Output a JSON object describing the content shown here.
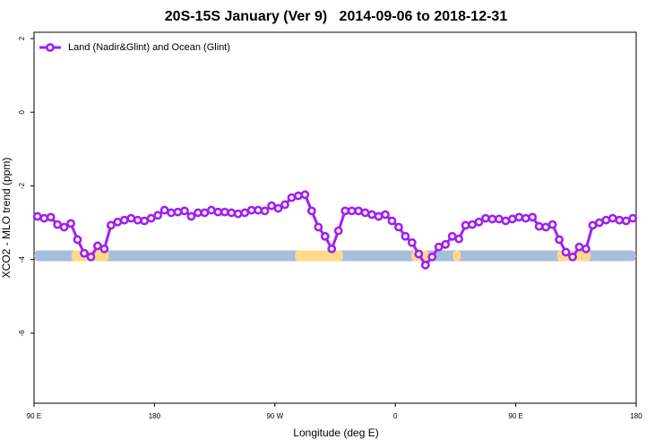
{
  "chart_data": {
    "type": "line",
    "title": "20S-15S January (Ver 9)   2014-09-06 to 2018-12-31",
    "x_label": "Longitude (deg E)",
    "y_label": "XCO2 - MLO trend (ppm)",
    "xlim": [
      90,
      540
    ],
    "xticks": [
      {
        "value": 90,
        "label": "90 E"
      },
      180,
      {
        "value": 270,
        "label": "90 W"
      },
      {
        "value": 360,
        "label": "0"
      },
      {
        "value": 450,
        "label": "90 E"
      },
      {
        "value": 540,
        "label": "180"
      }
    ],
    "ylim": [
      -7.9,
      2.17
    ],
    "yticks": [
      2,
      0,
      -2,
      -4,
      -6
    ],
    "legend": "top-left",
    "series": [
      {
        "name": "Land (Nadir&Glint) and Ocean (Glint)",
        "color": "#a020f0",
        "x": [
          92.5,
          97.5,
          102.5,
          107.5,
          112.5,
          117.5,
          122.5,
          127.5,
          132.5,
          137.5,
          142.5,
          147.5,
          152.5,
          157.5,
          162.5,
          167.5,
          172.5,
          177.5,
          182.5,
          187.5,
          192.5,
          197.5,
          202.5,
          207.5,
          212.5,
          217.5,
          222.5,
          227.5,
          232.5,
          237.5,
          242.5,
          247.5,
          252.5,
          257.5,
          262.5,
          267.5,
          272.5,
          277.5,
          282.5,
          287.5,
          292.5,
          297.5,
          302.5,
          307.5,
          312.5,
          317.5,
          322.5,
          327.5,
          332.5,
          337.5,
          342.5,
          347.5,
          352.5,
          357.5,
          362.5,
          367.5,
          372.5,
          377.5,
          382.5,
          387.5,
          392.5,
          397.5,
          402.5,
          407.5,
          412.5,
          417.5,
          422.5,
          427.5,
          432.5,
          437.5,
          442.5,
          447.5,
          452.5,
          457.5,
          462.5,
          467.5,
          472.5,
          477.5,
          482.5,
          487.5,
          492.5,
          497.5,
          502.5,
          507.5,
          512.5,
          517.5,
          522.5,
          527.5,
          532.5,
          537.5
        ],
        "values": [
          -2.83,
          -2.88,
          -2.85,
          -3.05,
          -3.12,
          -3.02,
          -3.46,
          -3.83,
          -3.93,
          -3.63,
          -3.71,
          -3.07,
          -2.98,
          -2.93,
          -2.88,
          -2.93,
          -2.95,
          -2.88,
          -2.8,
          -2.66,
          -2.73,
          -2.71,
          -2.68,
          -2.83,
          -2.73,
          -2.73,
          -2.66,
          -2.71,
          -2.71,
          -2.73,
          -2.76,
          -2.73,
          -2.66,
          -2.66,
          -2.68,
          -2.54,
          -2.61,
          -2.51,
          -2.32,
          -2.27,
          -2.24,
          -2.68,
          -3.12,
          -3.37,
          -3.71,
          -3.22,
          -2.68,
          -2.68,
          -2.68,
          -2.73,
          -2.78,
          -2.83,
          -2.78,
          -2.95,
          -3.12,
          -3.37,
          -3.54,
          -3.85,
          -4.15,
          -3.93,
          -3.66,
          -3.59,
          -3.37,
          -3.44,
          -3.07,
          -3.05,
          -2.98,
          -2.88,
          -2.9,
          -2.9,
          -2.95,
          -2.9,
          -2.85,
          -2.88,
          -2.85,
          -3.1,
          -3.12,
          -3.05,
          -3.46,
          -3.8,
          -3.93,
          -3.66,
          -3.71,
          -3.07,
          -3.0,
          -2.93,
          -2.88,
          -2.93,
          -2.95,
          -2.88
        ]
      }
    ],
    "surface": {
      "value": -3.9,
      "ocean_color": "#a6bddb",
      "land_color": "#ffd98a",
      "land": [
        [
          118,
          146
        ],
        [
          285,
          321
        ],
        [
          372,
          385
        ],
        [
          403,
          409
        ],
        [
          481,
          506
        ]
      ]
    }
  }
}
